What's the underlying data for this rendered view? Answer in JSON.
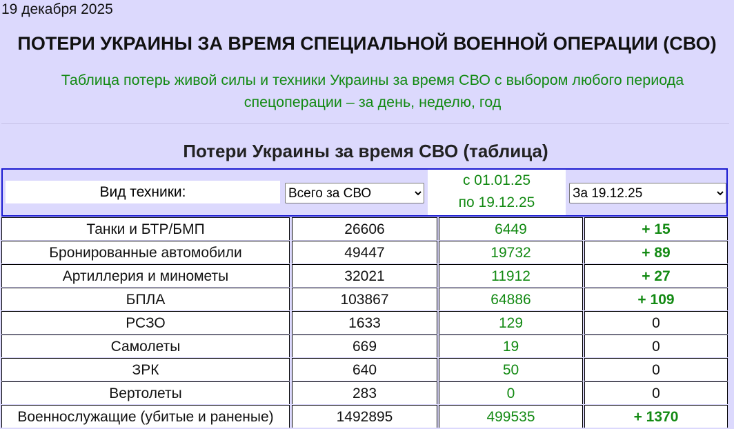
{
  "date": "19 декабря 2025",
  "header": {
    "title": "ПОТЕРИ УКРАИНЫ ЗА ВРЕМЯ СПЕЦИАЛЬНОЙ ВОЕННОЙ ОПЕРАЦИИ (СВО)",
    "subtitle": "Таблица потерь живой силы и техники Украины за время СВО с выбором любого периода спецоперации – за день, неделю, год"
  },
  "table": {
    "title": "Потери Украины за время СВО (таблица)",
    "controls": {
      "label": "Вид техники:",
      "total_select": "Всего за СВО",
      "period_from": "с 01.01.25",
      "period_to": "по 19.12.25",
      "day_select": "За 19.12.25"
    },
    "rows": [
      [
        "Танки и БТР/БМП",
        "26606",
        "6449",
        "+ 15"
      ],
      [
        "Бронированные автомобили",
        "49447",
        "19732",
        "+ 89"
      ],
      [
        "Артиллерия и минометы",
        "32021",
        "11912",
        "+ 27"
      ],
      [
        "БПЛА",
        "103867",
        "64886",
        "+ 109"
      ],
      [
        "РСЗО",
        "1633",
        "129",
        "0"
      ],
      [
        "Самолеты",
        "669",
        "19",
        "0"
      ],
      [
        "ЗРК",
        "640",
        "50",
        "0"
      ],
      [
        "Вертолеты",
        "283",
        "0",
        "0"
      ],
      [
        "Военнослужащие (убитые и раненые)",
        "1492895",
        "499535",
        "+ 1370"
      ]
    ]
  }
}
